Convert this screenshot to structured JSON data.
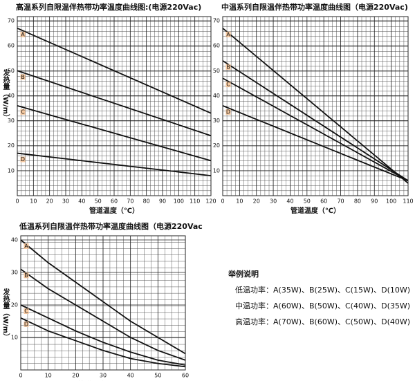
{
  "chart_data": [
    {
      "type": "line",
      "title": "高温系列自限温伴热带功率温度曲线图:(电源220Vac)",
      "x_label": "管道温度（℃）",
      "y_label": "发热量（W/m）",
      "x": [
        0,
        120
      ],
      "series": [
        {
          "name": "A",
          "color": "#111111",
          "values": [
            67,
            33
          ]
        },
        {
          "name": "B",
          "color": "#111111",
          "values": [
            50,
            24
          ]
        },
        {
          "name": "C",
          "color": "#111111",
          "values": [
            36,
            14
          ]
        },
        {
          "name": "D",
          "color": "#111111",
          "values": [
            17,
            8
          ]
        }
      ],
      "xlim": [
        0,
        120
      ],
      "ylim": [
        0,
        70
      ],
      "xticks": [
        0,
        10,
        20,
        30,
        40,
        50,
        60,
        70,
        80,
        90,
        100,
        110,
        120
      ],
      "yticks": [
        10,
        20,
        30,
        40,
        50,
        60,
        70
      ],
      "grid": true
    },
    {
      "type": "line",
      "title": "中温系列自限温伴热带功率温度曲线图（电源220Vac)",
      "x_label": "管道温度（℃）",
      "x": [
        0,
        110
      ],
      "series": [
        {
          "name": "A",
          "color": "#111111",
          "values": [
            67,
            5
          ]
        },
        {
          "name": "B",
          "color": "#111111",
          "values": [
            54,
            6
          ]
        },
        {
          "name": "C",
          "color": "#111111",
          "values": [
            47,
            6
          ]
        },
        {
          "name": "D",
          "color": "#111111",
          "values": [
            36,
            6
          ]
        }
      ],
      "xlim": [
        0,
        110
      ],
      "ylim": [
        0,
        70
      ],
      "xticks": [
        0,
        10,
        20,
        30,
        40,
        50,
        60,
        70,
        80,
        90,
        100,
        110
      ],
      "yticks": [
        10,
        20,
        30,
        40,
        50,
        60,
        70
      ],
      "grid": true
    },
    {
      "type": "line",
      "title": "低温系列自限温伴热带功率温度曲线图（电源220Vac",
      "x_label": "管道温度（℃）",
      "y_label": "发热量（W/m）",
      "x": [
        0,
        10,
        20,
        30,
        40,
        50,
        60
      ],
      "series": [
        {
          "name": "A",
          "color": "#111111",
          "values": [
            40,
            33,
            27,
            21,
            15,
            10,
            5
          ]
        },
        {
          "name": "B",
          "color": "#111111",
          "values": [
            31,
            25,
            20,
            15,
            10,
            6,
            3
          ]
        },
        {
          "name": "C",
          "color": "#111111",
          "values": [
            20,
            16,
            12,
            8.5,
            5.5,
            3,
            1.5
          ]
        },
        {
          "name": "D",
          "color": "#111111",
          "values": [
            16,
            12,
            9,
            6,
            3.5,
            2,
            1
          ]
        }
      ],
      "xlim": [
        0,
        60
      ],
      "ylim": [
        0,
        40
      ],
      "xticks": [
        0,
        10,
        20,
        30,
        40,
        50,
        60
      ],
      "yticks": [
        10,
        20,
        30,
        40
      ],
      "grid": true
    }
  ],
  "legend_note": {
    "title": "举例说明",
    "lines": [
      "低温功率：A(35W)、B(25W)、C(15W)、D(10W)",
      "中温功率：A(60W)、B(50W)、C(40W)、D(35W)",
      "高温功率：A(70W)、B(60W)、C(50W)、D(40W)"
    ]
  }
}
